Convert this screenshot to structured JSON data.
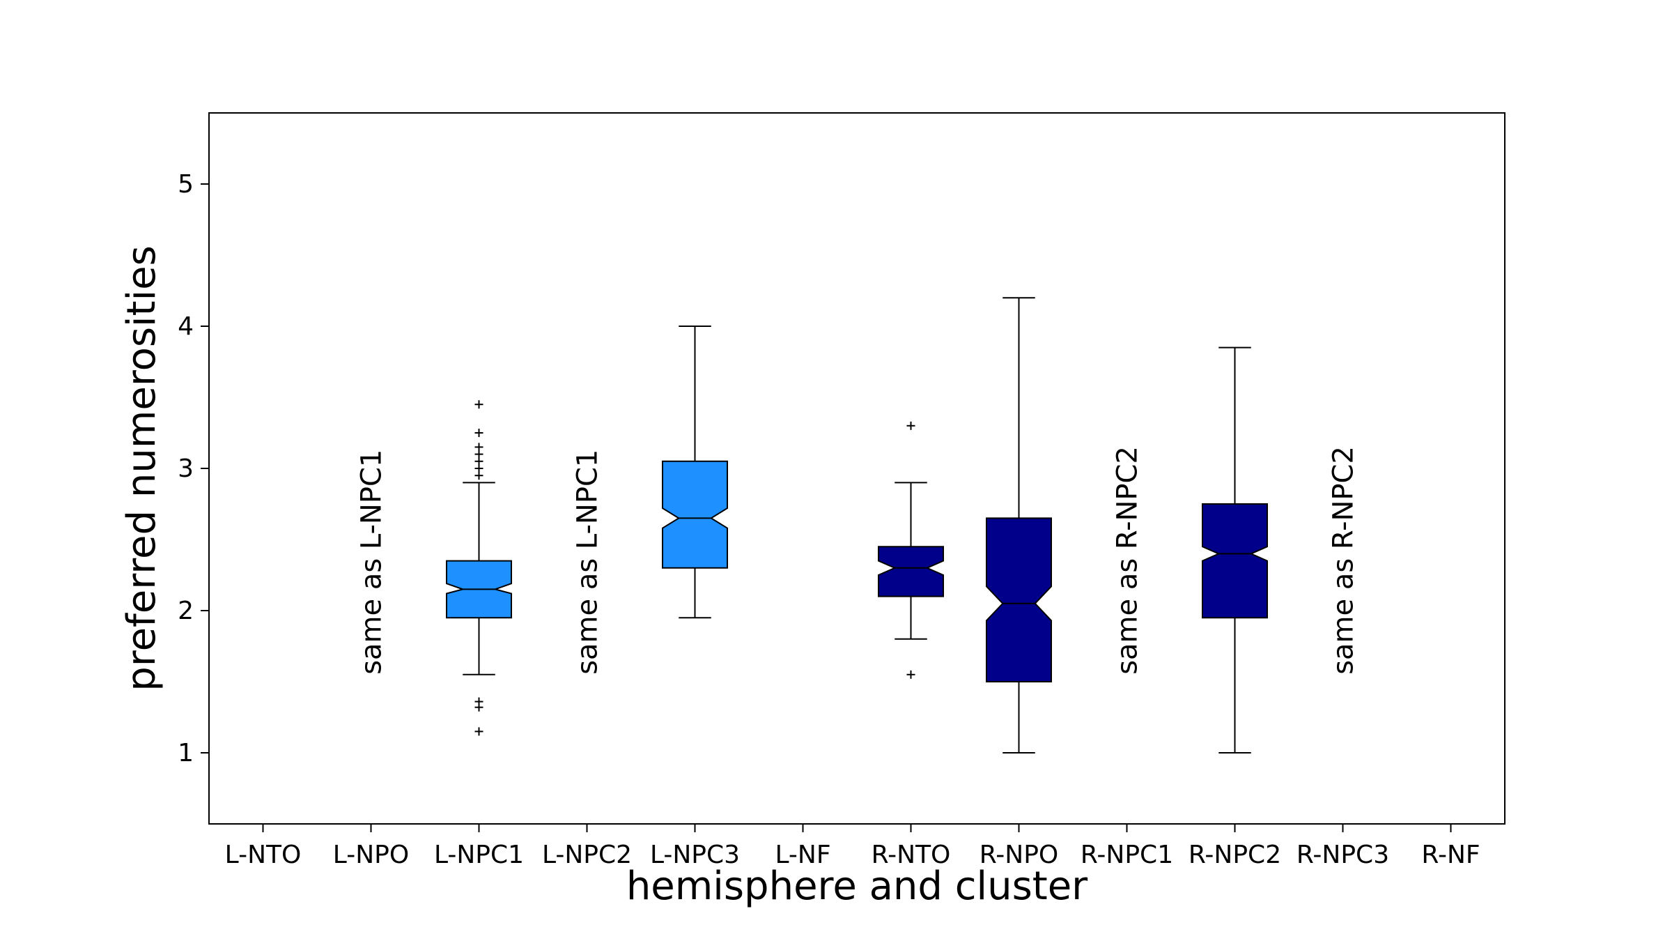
{
  "chart_data": {
    "type": "boxplot",
    "title": "",
    "xlabel": "hemisphere and cluster",
    "ylabel": "preferred numerosities",
    "ylim": [
      0.5,
      5.5
    ],
    "yticks": [
      1,
      2,
      3,
      4,
      5
    ],
    "notched": true,
    "grid": false,
    "categories": [
      "L-NTO",
      "L-NPO",
      "L-NPC1",
      "L-NPC2",
      "L-NPC3",
      "L-NF",
      "R-NTO",
      "R-NPO",
      "R-NPC1",
      "R-NPC2",
      "R-NPC3",
      "R-NF"
    ],
    "colors": {
      "left": "#1e90ff",
      "right": "#00008b",
      "outline": "#000000"
    },
    "boxes": [
      {
        "category": "L-NPC1",
        "side": "left",
        "whisker_low": 1.55,
        "q1": 1.95,
        "median": 2.15,
        "q3": 2.35,
        "whisker_high": 2.9,
        "notch_low": 2.12,
        "notch_high": 2.19,
        "outliers": [
          1.15,
          1.32,
          1.36,
          2.95,
          3.0,
          3.05,
          3.1,
          3.15,
          3.25,
          3.45
        ]
      },
      {
        "category": "L-NPC3",
        "side": "left",
        "whisker_low": 1.95,
        "q1": 2.3,
        "median": 2.65,
        "q3": 3.05,
        "whisker_high": 4.0,
        "notch_low": 2.58,
        "notch_high": 2.72,
        "outliers": []
      },
      {
        "category": "R-NTO",
        "side": "right",
        "whisker_low": 1.8,
        "q1": 2.1,
        "median": 2.3,
        "q3": 2.45,
        "whisker_high": 2.9,
        "notch_low": 2.25,
        "notch_high": 2.35,
        "outliers": [
          1.55,
          3.3
        ]
      },
      {
        "category": "R-NPO",
        "side": "right",
        "whisker_low": 1.0,
        "q1": 1.5,
        "median": 2.05,
        "q3": 2.65,
        "whisker_high": 4.2,
        "notch_low": 1.93,
        "notch_high": 2.17,
        "outliers": []
      },
      {
        "category": "R-NPC2",
        "side": "right",
        "whisker_low": 1.0,
        "q1": 1.95,
        "median": 2.4,
        "q3": 2.75,
        "whisker_high": 3.85,
        "notch_low": 2.35,
        "notch_high": 2.45,
        "outliers": []
      }
    ],
    "annotations": [
      {
        "category": "L-NPO",
        "text": "same as L-NPC1"
      },
      {
        "category": "L-NPC2",
        "text": "same as L-NPC1"
      },
      {
        "category": "R-NPC1",
        "text": "same as R-NPC2"
      },
      {
        "category": "R-NPC3",
        "text": "same as R-NPC2"
      }
    ]
  }
}
